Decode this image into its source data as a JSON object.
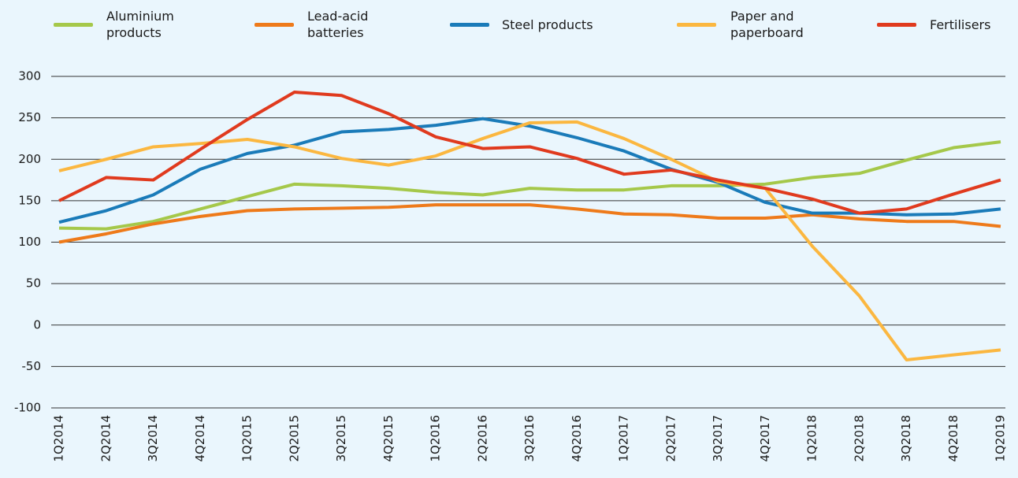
{
  "chart_data": {
    "type": "line",
    "categories": [
      "1Q2014",
      "2Q2014",
      "3Q2014",
      "4Q2014",
      "1Q2015",
      "2Q2015",
      "3Q2015",
      "4Q2015",
      "1Q2016",
      "2Q2016",
      "3Q2016",
      "4Q2016",
      "1Q2017",
      "2Q2017",
      "3Q2017",
      "4Q2017",
      "1Q2018",
      "2Q2018",
      "3Q2018",
      "4Q2018",
      "1Q2019"
    ],
    "series": [
      {
        "name": "Aluminium products",
        "color": "#a5c84a",
        "values": [
          117,
          116,
          125,
          140,
          155,
          170,
          168,
          165,
          160,
          157,
          165,
          163,
          163,
          168,
          168,
          170,
          178,
          183,
          199,
          214,
          221
        ]
      },
      {
        "name": "Lead-acid batteries",
        "color": "#ee7a1a",
        "values": [
          100,
          110,
          122,
          131,
          138,
          140,
          141,
          142,
          145,
          145,
          145,
          140,
          134,
          133,
          129,
          129,
          133,
          128,
          125,
          125,
          119
        ]
      },
      {
        "name": "Steel products",
        "color": "#1a7bb9",
        "values": [
          124,
          138,
          157,
          188,
          207,
          217,
          233,
          236,
          241,
          249,
          240,
          226,
          210,
          188,
          172,
          148,
          135,
          135,
          133,
          134,
          140
        ]
      },
      {
        "name": "Paper and paperboard",
        "color": "#fbb740",
        "values": [
          186,
          200,
          215,
          219,
          224,
          215,
          201,
          193,
          204,
          225,
          244,
          245,
          225,
          200,
          173,
          165,
          95,
          35,
          -42,
          -36,
          -30
        ]
      },
      {
        "name": "Fertilisers",
        "color": "#e03a1e",
        "values": [
          150,
          178,
          175,
          212,
          248,
          281,
          277,
          255,
          227,
          213,
          215,
          201,
          182,
          187,
          175,
          165,
          152,
          135,
          140,
          158,
          175
        ]
      }
    ],
    "ylim": [
      -100,
      300
    ],
    "yticks": [
      -100,
      -50,
      0,
      50,
      100,
      150,
      200,
      250,
      300
    ],
    "grid": true
  }
}
